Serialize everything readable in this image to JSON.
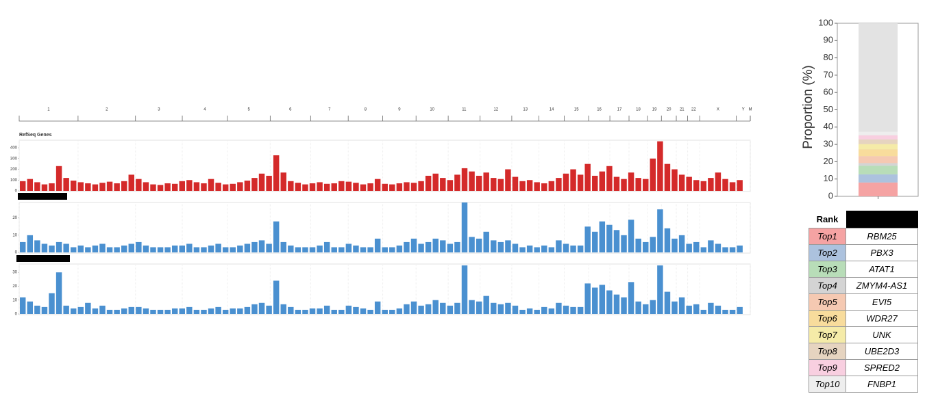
{
  "chart_data": [
    {
      "type": "ideogram",
      "categories": [
        "1",
        "2",
        "3",
        "4",
        "5",
        "6",
        "7",
        "8",
        "9",
        "10",
        "11",
        "12",
        "13",
        "14",
        "15",
        "16",
        "17",
        "18",
        "19",
        "20",
        "21",
        "22",
        "X",
        "Y",
        "M"
      ],
      "values": [
        249,
        243,
        198,
        191,
        181,
        171,
        159,
        146,
        141,
        136,
        135,
        134,
        115,
        107,
        103,
        90,
        81,
        78,
        59,
        63,
        48,
        51,
        155,
        59,
        0.016
      ]
    },
    {
      "type": "bar",
      "title": "RefSeq Genes",
      "color": "#d42a2a",
      "ylim": [
        0,
        470
      ],
      "yticks": [
        0,
        100,
        200,
        300,
        400
      ],
      "values": [
        90,
        110,
        80,
        60,
        70,
        230,
        120,
        95,
        80,
        70,
        60,
        75,
        85,
        70,
        90,
        150,
        110,
        80,
        60,
        55,
        70,
        65,
        90,
        100,
        80,
        70,
        110,
        75,
        60,
        65,
        80,
        95,
        120,
        160,
        140,
        330,
        170,
        90,
        75,
        60,
        70,
        80,
        65,
        70,
        90,
        85,
        75,
        60,
        70,
        110,
        65,
        60,
        70,
        80,
        75,
        90,
        140,
        160,
        120,
        100,
        150,
        210,
        180,
        140,
        170,
        120,
        110,
        200,
        130,
        90,
        100,
        80,
        70,
        90,
        120,
        160,
        200,
        150,
        250,
        140,
        180,
        230,
        130,
        110,
        170,
        120,
        110,
        300,
        460,
        250,
        200,
        150,
        130,
        100,
        90,
        120,
        170,
        110,
        80,
        100
      ]
    },
    {
      "type": "bar",
      "color": "#4a90d0",
      "ylim": [
        0,
        29
      ],
      "yticks": [
        0,
        10,
        20
      ],
      "values": [
        6,
        10,
        7,
        5,
        4,
        6,
        5,
        3,
        4,
        3,
        4,
        5,
        3,
        3,
        4,
        5,
        6,
        4,
        3,
        3,
        3,
        4,
        4,
        5,
        3,
        3,
        4,
        5,
        3,
        3,
        4,
        5,
        6,
        7,
        5,
        18,
        6,
        4,
        3,
        3,
        3,
        4,
        6,
        3,
        3,
        5,
        4,
        3,
        3,
        8,
        3,
        3,
        4,
        6,
        8,
        5,
        6,
        8,
        7,
        5,
        6,
        29,
        9,
        8,
        12,
        7,
        6,
        7,
        5,
        3,
        4,
        3,
        4,
        3,
        7,
        5,
        4,
        4,
        15,
        12,
        18,
        16,
        13,
        10,
        19,
        8,
        6,
        9,
        25,
        14,
        8,
        10,
        5,
        6,
        3,
        7,
        5,
        3,
        3,
        4
      ]
    },
    {
      "type": "bar",
      "color": "#4a90d0",
      "ylim": [
        0,
        36
      ],
      "yticks": [
        0,
        10,
        20,
        30
      ],
      "values": [
        12,
        9,
        6,
        5,
        15,
        30,
        6,
        4,
        5,
        8,
        4,
        6,
        3,
        3,
        4,
        5,
        5,
        4,
        3,
        3,
        3,
        4,
        4,
        5,
        3,
        3,
        4,
        5,
        3,
        4,
        4,
        5,
        7,
        8,
        6,
        24,
        7,
        5,
        3,
        3,
        4,
        4,
        6,
        3,
        3,
        6,
        5,
        4,
        3,
        9,
        3,
        3,
        4,
        7,
        9,
        6,
        7,
        10,
        8,
        6,
        8,
        35,
        10,
        9,
        13,
        8,
        7,
        8,
        6,
        3,
        4,
        3,
        5,
        4,
        8,
        6,
        5,
        5,
        22,
        19,
        21,
        17,
        14,
        12,
        23,
        9,
        7,
        10,
        35,
        16,
        9,
        12,
        6,
        7,
        3,
        8,
        6,
        3,
        3,
        5
      ]
    },
    {
      "type": "stacked_bar",
      "y_label": "Proportion (%)",
      "background": "#e3e3e3",
      "ylim": [
        0,
        100
      ],
      "yticks": [
        0,
        10,
        20,
        30,
        40,
        50,
        60,
        70,
        80,
        90,
        100
      ],
      "series": [
        {
          "name": "Top1",
          "color": "#f5a3a3",
          "values": [
            8
          ]
        },
        {
          "name": "Top2",
          "color": "#acc2de",
          "values": [
            4.7
          ]
        },
        {
          "name": "Top3",
          "color": "#b8ddb8",
          "values": [
            5
          ]
        },
        {
          "name": "Top4",
          "color": "#d4d4d4",
          "values": [
            1.5
          ]
        },
        {
          "name": "Top5",
          "color": "#f5c9b2",
          "values": [
            4
          ]
        },
        {
          "name": "Top6",
          "color": "#f8dc9c",
          "values": [
            4
          ]
        },
        {
          "name": "Top7",
          "color": "#f5eba8",
          "values": [
            3
          ]
        },
        {
          "name": "Top8",
          "color": "#e6d4c0",
          "values": [
            2.7
          ]
        },
        {
          "name": "Top9",
          "color": "#f8cfe0",
          "values": [
            2.4
          ]
        },
        {
          "name": "Top10",
          "color": "#eeeeee",
          "values": [
            2
          ]
        }
      ]
    }
  ],
  "table": {
    "header": "Rank",
    "rows": [
      "RBM25",
      "PBX3",
      "ATAT1",
      "ZMYM4-AS1",
      "EVI5",
      "WDR27",
      "UNK",
      "UBE2D3",
      "SPRED2",
      "FNBP1"
    ]
  }
}
